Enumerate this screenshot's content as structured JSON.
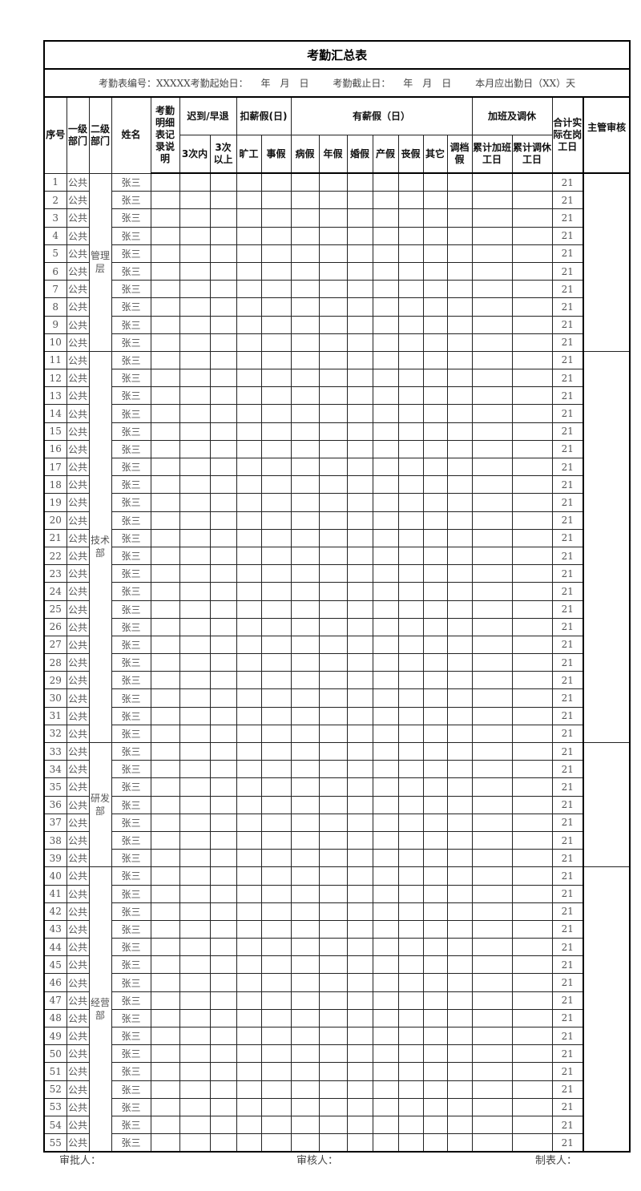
{
  "title": "考勤汇总表",
  "info": {
    "sheet_no": "考勤表编号：XXXXX",
    "start_label": "考勤起始日：",
    "end_label": "考勤截止日：",
    "year": "年",
    "month": "月",
    "day": "日",
    "required_days": "本月应出勤日（XX）天"
  },
  "headers": {
    "no": "序号",
    "dept1": "一级部门",
    "dept2": "二级部门",
    "name": "姓名",
    "note": "考勤明细表记录说明",
    "late": "迟到/早退",
    "late_sub": [
      "3次内",
      "3次以上"
    ],
    "unpaid": "扣薪假(日)",
    "unpaid_sub": [
      "旷工",
      "事假"
    ],
    "paid": "有薪假（日）",
    "paid_sub": [
      "病假",
      "年假",
      "婚假",
      "产假",
      "丧假",
      "其它",
      "调档假"
    ],
    "overtime": "加班及调休",
    "overtime_sub": [
      "累计加班工日",
      "累计调休工日"
    ],
    "total": "合计实际在岗工日",
    "supervisor": "主管审核"
  },
  "groups": [
    {
      "dept2": "管理层",
      "rows": [
        [
          1,
          "公共",
          "张三",
          21
        ],
        [
          2,
          "公共",
          "张三",
          21
        ],
        [
          3,
          "公共",
          "张三",
          21
        ],
        [
          4,
          "公共",
          "张三",
          21
        ],
        [
          5,
          "公共",
          "张三",
          21
        ],
        [
          6,
          "公共",
          "张三",
          21
        ],
        [
          7,
          "公共",
          "张三",
          21
        ],
        [
          8,
          "公共",
          "张三",
          21
        ],
        [
          9,
          "公共",
          "张三",
          21
        ],
        [
          10,
          "公共",
          "张三",
          21
        ]
      ]
    },
    {
      "dept2": "技术部",
      "rows": [
        [
          11,
          "公共",
          "张三",
          21
        ],
        [
          12,
          "公共",
          "张三",
          21
        ],
        [
          13,
          "公共",
          "张三",
          21
        ],
        [
          14,
          "公共",
          "张三",
          21
        ],
        [
          15,
          "公共",
          "张三",
          21
        ],
        [
          16,
          "公共",
          "张三",
          21
        ],
        [
          17,
          "公共",
          "张三",
          21
        ],
        [
          18,
          "公共",
          "张三",
          21
        ],
        [
          19,
          "公共",
          "张三",
          21
        ],
        [
          20,
          "公共",
          "张三",
          21
        ],
        [
          21,
          "公共",
          "张三",
          21
        ],
        [
          22,
          "公共",
          "张三",
          21
        ],
        [
          23,
          "公共",
          "张三",
          21
        ],
        [
          24,
          "公共",
          "张三",
          21
        ],
        [
          25,
          "公共",
          "张三",
          21
        ],
        [
          26,
          "公共",
          "张三",
          21
        ],
        [
          27,
          "公共",
          "张三",
          21
        ],
        [
          28,
          "公共",
          "张三",
          21
        ],
        [
          29,
          "公共",
          "张三",
          21
        ],
        [
          30,
          "公共",
          "张三",
          21
        ],
        [
          31,
          "公共",
          "张三",
          21
        ],
        [
          32,
          "公共",
          "张三",
          21
        ]
      ]
    },
    {
      "dept2": "研发部",
      "rows": [
        [
          33,
          "公共",
          "张三",
          21
        ],
        [
          34,
          "公共",
          "张三",
          21
        ],
        [
          35,
          "公共",
          "张三",
          21
        ],
        [
          36,
          "公共",
          "张三",
          21
        ],
        [
          37,
          "公共",
          "张三",
          21
        ],
        [
          38,
          "公共",
          "张三",
          21
        ],
        [
          39,
          "公共",
          "张三",
          21
        ]
      ]
    },
    {
      "dept2": "经营部",
      "rows": [
        [
          40,
          "公共",
          "张三",
          21
        ],
        [
          41,
          "公共",
          "张三",
          21
        ],
        [
          42,
          "公共",
          "张三",
          21
        ],
        [
          43,
          "公共",
          "张三",
          21
        ],
        [
          44,
          "公共",
          "张三",
          21
        ],
        [
          45,
          "公共",
          "张三",
          21
        ],
        [
          46,
          "公共",
          "张三",
          21
        ],
        [
          47,
          "公共",
          "张三",
          21
        ],
        [
          48,
          "公共",
          "张三",
          21
        ],
        [
          49,
          "公共",
          "张三",
          21
        ],
        [
          50,
          "公共",
          "张三",
          21
        ],
        [
          51,
          "公共",
          "张三",
          21
        ],
        [
          52,
          "公共",
          "张三",
          21
        ],
        [
          53,
          "公共",
          "张三",
          21
        ],
        [
          54,
          "公共",
          "张三",
          21
        ],
        [
          55,
          "公共",
          "张三",
          21
        ]
      ]
    }
  ],
  "footer": {
    "approver": "审批人：",
    "reviewer": "审核人：",
    "preparer": "制表人："
  }
}
